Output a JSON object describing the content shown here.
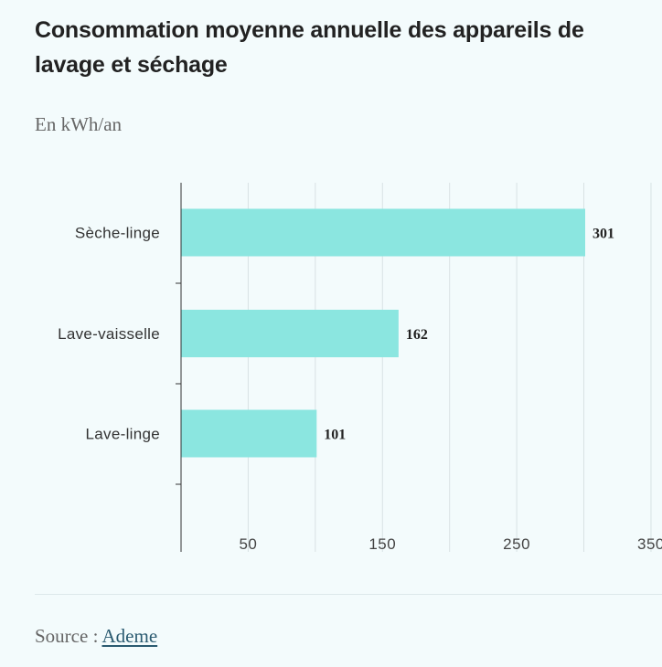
{
  "title": "Consommation moyenne annuelle des appareils de lavage et séchage",
  "subtitle": "En kWh/an",
  "source": {
    "prefix": "Source :",
    "link_text": "Ademe"
  },
  "colors": {
    "bar": "#8be6e0",
    "grid": "#d8e2e4",
    "axis": "#333333",
    "background": "#f3fbfc"
  },
  "chart_data": {
    "type": "bar",
    "orientation": "horizontal",
    "categories": [
      "Sèche-linge",
      "Lave-vaisselle",
      "Lave-linge"
    ],
    "values": [
      301,
      162,
      101
    ],
    "data_labels": [
      "301",
      "162",
      "101"
    ],
    "x_ticks": [
      50,
      150,
      250,
      350
    ],
    "x_tick_labels": [
      "50",
      "150",
      "250",
      "350"
    ],
    "xlim": [
      0,
      350
    ],
    "grid": true
  }
}
